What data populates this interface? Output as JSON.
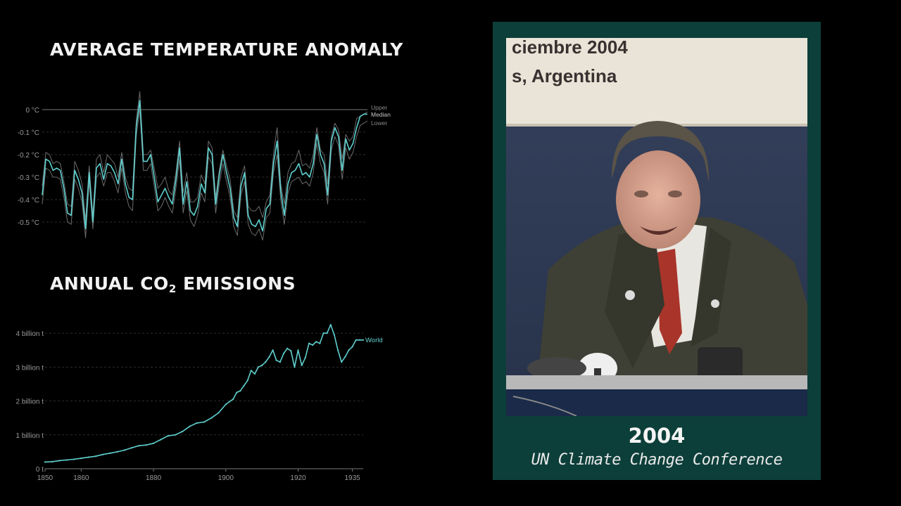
{
  "colors": {
    "background": "#000000",
    "accent": "#5fd0cf",
    "panel": "#0d3f3a"
  },
  "chart_data": [
    {
      "type": "line",
      "title": "AVERAGE TEMPERATURE ANOMALY",
      "ylim": [
        -0.55,
        0.05
      ],
      "xlim": [
        1850,
        1940
      ],
      "y_ticks": [
        "0 °C",
        "-0.1 °C",
        "-0.2 °C",
        "-0.3 °C",
        "-0.4 °C",
        "-0.5 °C"
      ],
      "y_tick_values": [
        0,
        -0.1,
        -0.2,
        -0.3,
        -0.4,
        -0.5
      ],
      "x": [
        1850,
        1851,
        1852,
        1853,
        1854,
        1855,
        1856,
        1857,
        1858,
        1859,
        1860,
        1861,
        1862,
        1863,
        1864,
        1865,
        1866,
        1867,
        1868,
        1869,
        1870,
        1871,
        1872,
        1873,
        1874,
        1875,
        1876,
        1877,
        1878,
        1879,
        1880,
        1881,
        1882,
        1883,
        1884,
        1885,
        1886,
        1887,
        1888,
        1889,
        1890,
        1891,
        1892,
        1893,
        1894,
        1895,
        1896,
        1897,
        1898,
        1899,
        1900,
        1901,
        1902,
        1903,
        1904,
        1905,
        1906,
        1907,
        1908,
        1909,
        1910,
        1911,
        1912,
        1913,
        1914,
        1915,
        1916,
        1917,
        1918,
        1919,
        1920,
        1921,
        1922,
        1923,
        1924,
        1925,
        1926,
        1927,
        1928,
        1929,
        1930,
        1931,
        1932,
        1933,
        1934,
        1935,
        1936,
        1937,
        1938,
        1939,
        1940
      ],
      "series": [
        {
          "name": "Upper",
          "values": [
            -0.34,
            -0.19,
            -0.2,
            -0.24,
            -0.23,
            -0.24,
            -0.32,
            -0.42,
            -0.43,
            -0.23,
            -0.27,
            -0.33,
            -0.49,
            -0.25,
            -0.47,
            -0.22,
            -0.2,
            -0.28,
            -0.2,
            -0.22,
            -0.24,
            -0.3,
            -0.19,
            -0.3,
            -0.35,
            -0.36,
            -0.05,
            0.08,
            -0.2,
            -0.2,
            -0.18,
            -0.26,
            -0.35,
            -0.33,
            -0.3,
            -0.36,
            -0.38,
            -0.28,
            -0.14,
            -0.37,
            -0.28,
            -0.41,
            -0.41,
            -0.39,
            -0.29,
            -0.33,
            -0.14,
            -0.17,
            -0.39,
            -0.27,
            -0.18,
            -0.25,
            -0.31,
            -0.45,
            -0.48,
            -0.3,
            -0.25,
            -0.43,
            -0.45,
            -0.45,
            -0.43,
            -0.48,
            -0.41,
            -0.38,
            -0.2,
            -0.08,
            -0.33,
            -0.42,
            -0.28,
            -0.24,
            -0.23,
            -0.18,
            -0.25,
            -0.24,
            -0.26,
            -0.2,
            -0.08,
            -0.18,
            -0.2,
            -0.33,
            -0.12,
            -0.06,
            -0.09,
            -0.22,
            -0.11,
            -0.14,
            -0.12,
            -0.04,
            -0.03,
            -0.02,
            -0.01
          ]
        },
        {
          "name": "Median",
          "values": [
            -0.38,
            -0.22,
            -0.23,
            -0.27,
            -0.26,
            -0.27,
            -0.35,
            -0.46,
            -0.47,
            -0.27,
            -0.31,
            -0.37,
            -0.53,
            -0.28,
            -0.5,
            -0.26,
            -0.24,
            -0.31,
            -0.24,
            -0.25,
            -0.28,
            -0.33,
            -0.22,
            -0.33,
            -0.39,
            -0.4,
            -0.08,
            0.04,
            -0.23,
            -0.23,
            -0.2,
            -0.3,
            -0.41,
            -0.38,
            -0.35,
            -0.39,
            -0.42,
            -0.31,
            -0.17,
            -0.42,
            -0.32,
            -0.45,
            -0.47,
            -0.43,
            -0.33,
            -0.37,
            -0.17,
            -0.2,
            -0.42,
            -0.29,
            -0.2,
            -0.28,
            -0.35,
            -0.48,
            -0.52,
            -0.34,
            -0.28,
            -0.47,
            -0.51,
            -0.52,
            -0.49,
            -0.54,
            -0.44,
            -0.42,
            -0.24,
            -0.14,
            -0.36,
            -0.47,
            -0.33,
            -0.28,
            -0.27,
            -0.24,
            -0.29,
            -0.28,
            -0.3,
            -0.24,
            -0.11,
            -0.2,
            -0.24,
            -0.38,
            -0.14,
            -0.08,
            -0.12,
            -0.27,
            -0.13,
            -0.18,
            -0.15,
            -0.08,
            -0.03,
            -0.02,
            -0.02
          ]
        },
        {
          "name": "Lower",
          "values": [
            -0.42,
            -0.26,
            -0.27,
            -0.3,
            -0.3,
            -0.31,
            -0.39,
            -0.5,
            -0.51,
            -0.31,
            -0.35,
            -0.41,
            -0.57,
            -0.32,
            -0.53,
            -0.3,
            -0.28,
            -0.34,
            -0.28,
            -0.28,
            -0.32,
            -0.37,
            -0.26,
            -0.37,
            -0.43,
            -0.45,
            -0.12,
            0,
            -0.27,
            -0.27,
            -0.24,
            -0.34,
            -0.45,
            -0.43,
            -0.39,
            -0.43,
            -0.46,
            -0.35,
            -0.22,
            -0.46,
            -0.36,
            -0.49,
            -0.52,
            -0.47,
            -0.37,
            -0.41,
            -0.21,
            -0.24,
            -0.46,
            -0.33,
            -0.24,
            -0.32,
            -0.39,
            -0.52,
            -0.56,
            -0.38,
            -0.32,
            -0.51,
            -0.55,
            -0.56,
            -0.53,
            -0.58,
            -0.48,
            -0.46,
            -0.28,
            -0.2,
            -0.4,
            -0.51,
            -0.37,
            -0.32,
            -0.31,
            -0.3,
            -0.33,
            -0.32,
            -0.34,
            -0.28,
            -0.15,
            -0.24,
            -0.28,
            -0.42,
            -0.18,
            -0.12,
            -0.16,
            -0.31,
            -0.17,
            -0.22,
            -0.19,
            -0.12,
            -0.07,
            -0.06,
            -0.05
          ]
        }
      ],
      "legend": [
        "Upper",
        "Median",
        "Lower"
      ]
    },
    {
      "type": "line",
      "title": "ANNUAL CO₂ EMISSIONS",
      "ylim": [
        0,
        4500000000
      ],
      "xlim": [
        1850,
        1938
      ],
      "y_ticks": [
        "4 billion t",
        "3 billion t",
        "2 billion t",
        "1 billion t",
        "0 t"
      ],
      "y_tick_values": [
        4000000000,
        3000000000,
        2000000000,
        1000000000,
        0
      ],
      "x_ticks": [
        "1850",
        "1860",
        "1880",
        "1900",
        "1920",
        "1935"
      ],
      "x_tick_values": [
        1850,
        1860,
        1880,
        1900,
        1920,
        1935
      ],
      "x": [
        1850,
        1852,
        1854,
        1856,
        1858,
        1860,
        1862,
        1864,
        1866,
        1868,
        1870,
        1872,
        1874,
        1876,
        1878,
        1880,
        1882,
        1884,
        1886,
        1888,
        1890,
        1892,
        1894,
        1896,
        1898,
        1900,
        1901,
        1902,
        1903,
        1904,
        1905,
        1906,
        1907,
        1908,
        1909,
        1910,
        1911,
        1912,
        1913,
        1914,
        1915,
        1916,
        1917,
        1918,
        1919,
        1920,
        1921,
        1922,
        1923,
        1924,
        1925,
        1926,
        1927,
        1928,
        1929,
        1930,
        1931,
        1932,
        1933,
        1934,
        1935,
        1936,
        1937,
        1938
      ],
      "series": [
        {
          "name": "World",
          "values": [
            200000000,
            210000000,
            240000000,
            260000000,
            280000000,
            310000000,
            340000000,
            370000000,
            420000000,
            460000000,
            500000000,
            550000000,
            620000000,
            680000000,
            700000000,
            750000000,
            860000000,
            970000000,
            1000000000,
            1100000000,
            1250000000,
            1350000000,
            1380000000,
            1500000000,
            1650000000,
            1900000000,
            1980000000,
            2050000000,
            2250000000,
            2300000000,
            2450000000,
            2600000000,
            2900000000,
            2800000000,
            3000000000,
            3050000000,
            3150000000,
            3300000000,
            3500000000,
            3200000000,
            3150000000,
            3400000000,
            3550000000,
            3480000000,
            3000000000,
            3500000000,
            3050000000,
            3280000000,
            3700000000,
            3650000000,
            3750000000,
            3700000000,
            4000000000,
            4000000000,
            4250000000,
            3950000000,
            3500000000,
            3150000000,
            3300000000,
            3500000000,
            3600000000,
            3800000000,
            3800000000,
            3800000000
          ]
        }
      ],
      "legend": [
        "World"
      ]
    }
  ],
  "headings": {
    "temp_title": "AVERAGE TEMPERATURE ANOMALY",
    "co2_title_prefix": "ANNUAL CO",
    "co2_title_sub": "2",
    "co2_title_suffix": " EMISSIONS"
  },
  "photo": {
    "banner_line1": "ciembre 2004",
    "banner_line2": "s, Argentina",
    "year": "2004",
    "caption": "UN Climate Change Conference"
  }
}
